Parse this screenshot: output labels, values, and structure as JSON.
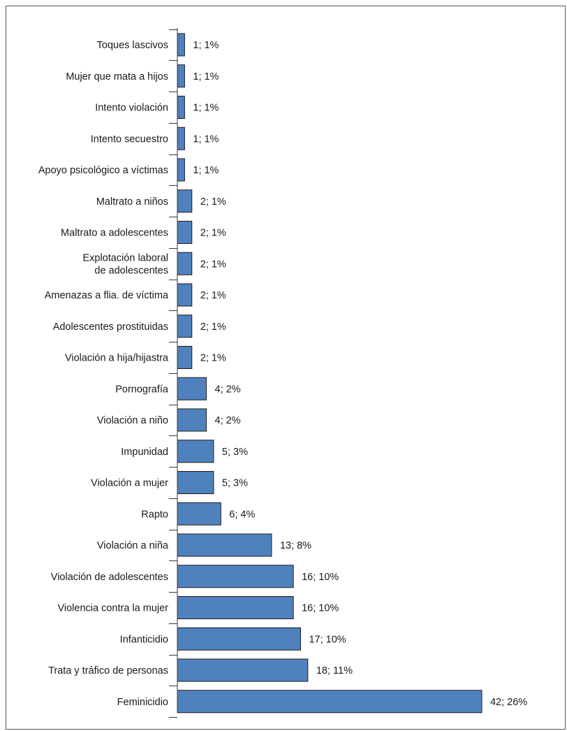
{
  "chart_data": {
    "type": "bar",
    "orientation": "horizontal",
    "title": "",
    "xlabel": "",
    "ylabel": "",
    "xlim": [
      0,
      42
    ],
    "grid": false,
    "legend": "none",
    "bar_color": "#4f81bd",
    "bar_edge_color": "#1f1f1f",
    "categories": [
      [
        "Toques lascivos"
      ],
      [
        "Mujer que mata a hijos"
      ],
      [
        "Intento violación"
      ],
      [
        "Intento secuestro"
      ],
      [
        "Apoyo psicológico a víctimas"
      ],
      [
        "Maltrato a niños"
      ],
      [
        "Maltrato a adolescentes"
      ],
      [
        "Explotación laboral",
        "de adolescentes"
      ],
      [
        "Amenazas a flia. de víctima"
      ],
      [
        "Adolescentes prostituidas"
      ],
      [
        "Violación a hija/hijastra"
      ],
      [
        "Pornografía"
      ],
      [
        "Violación a niño"
      ],
      [
        "Impunidad"
      ],
      [
        "Violación a mujer"
      ],
      [
        "Rapto"
      ],
      [
        "Violación a niña"
      ],
      [
        "Violación de adolescentes"
      ],
      [
        "Violencia contra la mujer"
      ],
      [
        "Infanticidio"
      ],
      [
        "Trata y tráfico de personas"
      ],
      [
        "Feminicidio"
      ]
    ],
    "values": [
      1,
      1,
      1,
      1,
      1,
      2,
      2,
      2,
      2,
      2,
      2,
      4,
      4,
      5,
      5,
      6,
      13,
      16,
      16,
      17,
      18,
      42
    ],
    "data_labels": [
      "1; 1%",
      "1; 1%",
      "1; 1%",
      "1; 1%",
      "1; 1%",
      "2; 1%",
      "2; 1%",
      "2; 1%",
      "2; 1%",
      "2; 1%",
      "2; 1%",
      "4; 2%",
      "4; 2%",
      "5; 3%",
      "5; 3%",
      "6; 4%",
      "13; 8%",
      "16; 10%",
      "16; 10%",
      "17; 10%",
      "18; 11%",
      "42; 26%"
    ]
  }
}
